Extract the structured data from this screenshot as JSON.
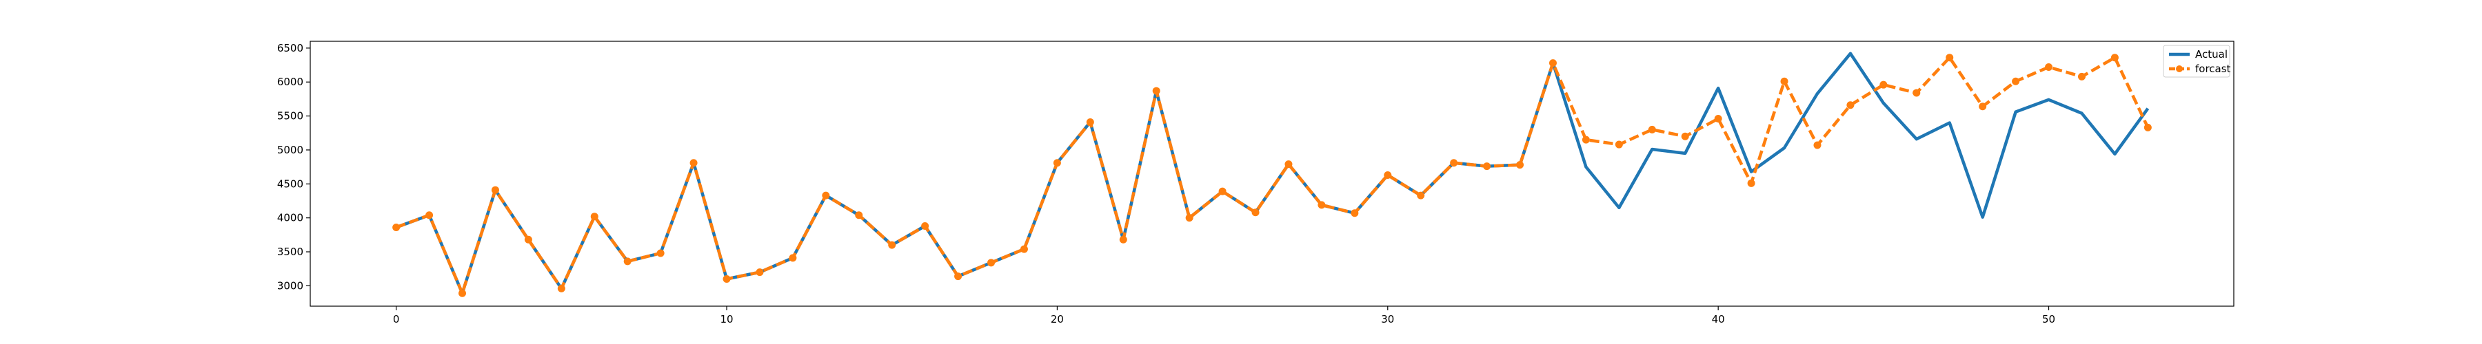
{
  "chart_data": {
    "type": "line",
    "title": "",
    "xlabel": "",
    "ylabel": "",
    "xlim": [
      -2.6,
      55.6
    ],
    "ylim": [
      2700,
      6600
    ],
    "xticks": [
      0,
      10,
      20,
      30,
      40,
      50
    ],
    "yticks": [
      3000,
      3500,
      4000,
      4500,
      5000,
      5500,
      6000,
      6500
    ],
    "grid": false,
    "legend_position": "top-right",
    "series": [
      {
        "name": "Actual",
        "color": "#1f77b4",
        "style": "solid",
        "marker": "none",
        "x": [
          0,
          1,
          2,
          3,
          4,
          5,
          6,
          7,
          8,
          9,
          10,
          11,
          12,
          13,
          14,
          15,
          16,
          17,
          18,
          19,
          20,
          21,
          22,
          23,
          24,
          25,
          26,
          27,
          28,
          29,
          30,
          31,
          32,
          33,
          34,
          35,
          36,
          37,
          38,
          39,
          40,
          41,
          42,
          43,
          44,
          45,
          46,
          47,
          48,
          49,
          50,
          51,
          52,
          53
        ],
        "values": [
          3860,
          4040,
          2890,
          4410,
          3680,
          2960,
          4020,
          3360,
          3480,
          4810,
          3100,
          3200,
          3410,
          4330,
          4040,
          3600,
          3880,
          3140,
          3340,
          3540,
          4810,
          5410,
          3680,
          5870,
          4000,
          4390,
          4080,
          4790,
          4190,
          4070,
          4630,
          4330,
          4810,
          4760,
          4780,
          6280,
          4750,
          4150,
          5010,
          4950,
          5910,
          4680,
          5030,
          5830,
          6420,
          5690,
          5160,
          5400,
          4010,
          5560,
          5740,
          5540,
          4940,
          5610
        ]
      },
      {
        "name": "forcast",
        "color": "#ff7f0e",
        "style": "dashed",
        "marker": "circle",
        "x": [
          0,
          1,
          2,
          3,
          4,
          5,
          6,
          7,
          8,
          9,
          10,
          11,
          12,
          13,
          14,
          15,
          16,
          17,
          18,
          19,
          20,
          21,
          22,
          23,
          24,
          25,
          26,
          27,
          28,
          29,
          30,
          31,
          32,
          33,
          34,
          35,
          36,
          37,
          38,
          39,
          40,
          41,
          42,
          43,
          44,
          45,
          46,
          47,
          48,
          49,
          50,
          51,
          52,
          53
        ],
        "values": [
          3860,
          4040,
          2890,
          4410,
          3680,
          2960,
          4020,
          3360,
          3480,
          4810,
          3100,
          3200,
          3410,
          4330,
          4040,
          3600,
          3880,
          3140,
          3340,
          3540,
          4810,
          5410,
          3680,
          5870,
          4000,
          4390,
          4080,
          4790,
          4190,
          4070,
          4630,
          4330,
          4810,
          4760,
          4780,
          6280,
          5150,
          5080,
          5300,
          5200,
          5460,
          4510,
          6010,
          5070,
          5660,
          5960,
          5840,
          6360,
          5640,
          6010,
          6220,
          6080,
          6360,
          5330
        ]
      }
    ]
  }
}
